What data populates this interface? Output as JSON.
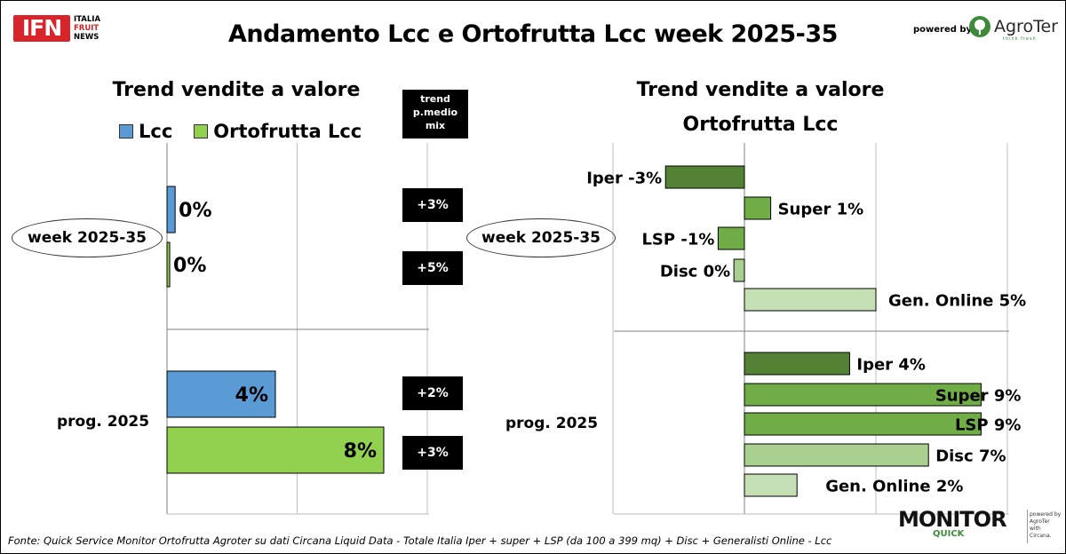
{
  "header": {
    "title": "Andamento Lcc e Ortofrutta Lcc week 2025-35",
    "ifn_logo": {
      "mark": "IFN",
      "words": [
        "ITALIA",
        "FRUIT",
        "NEWS"
      ]
    },
    "powered_by": "powered by",
    "agroter": {
      "name": "AgroTer",
      "tagline": "think fresh"
    }
  },
  "footer": {
    "source": "Fonte: Quick Service Monitor Ortofrutta Agroter su dati Circana Liquid Data - Totale Italia Iper + super + LSP (da 100 a 399 mq) + Disc + Generalisti Online - Lcc",
    "monitor_logo": "MONITOR",
    "monitor_quick": "QUICK",
    "monitor_side": [
      "powered by",
      "AgroTer",
      "with",
      "Circana."
    ]
  },
  "colors": {
    "lcc": "#5b9bd5",
    "ortofrutta_lcc": "#92d050",
    "iper": "#548235",
    "super": "#70ad47",
    "lsp": "#70ad47",
    "disc": "#a9d08e",
    "online": "#c5e0b4",
    "badge_bg": "#000000"
  },
  "chart_data": [
    {
      "type": "bar",
      "orientation": "horizontal",
      "title": "Trend vendite a valore",
      "legend": [
        "Lcc",
        "Ortofrutta Lcc"
      ],
      "legend_position": "top",
      "grid": true,
      "groups": [
        {
          "label": "week 2025-35",
          "bars": [
            {
              "series": "Lcc",
              "value": 0.3,
              "label": "0%"
            },
            {
              "series": "Ortofrutta Lcc",
              "value": 0.1,
              "label": "0%"
            }
          ]
        },
        {
          "label": "prog. 2025",
          "bars": [
            {
              "series": "Lcc",
              "value": 4,
              "label": "4%"
            },
            {
              "series": "Ortofrutta Lcc",
              "value": 8,
              "label": "8%"
            }
          ]
        }
      ],
      "trend_column": {
        "header": [
          "trend",
          "p.medio",
          "mix"
        ],
        "values": [
          "+3%",
          "+5%",
          "+2%",
          "+3%"
        ]
      }
    },
    {
      "type": "bar",
      "orientation": "horizontal",
      "title": [
        "Trend vendite a valore",
        "Ortofrutta Lcc"
      ],
      "grid": true,
      "groups": [
        {
          "label": "week 2025-35",
          "bars": [
            {
              "category": "Iper",
              "value": -3,
              "label": "Iper -3%"
            },
            {
              "category": "Super",
              "value": 1,
              "label": "Super 1%"
            },
            {
              "category": "LSP",
              "value": -1,
              "label": "LSP -1%"
            },
            {
              "category": "Disc",
              "value": -0.4,
              "label": "Disc 0%"
            },
            {
              "category": "Gen. Online",
              "value": 5,
              "label": "Gen. Online 5%"
            }
          ]
        },
        {
          "label": "prog. 2025",
          "bars": [
            {
              "category": "Iper",
              "value": 4,
              "label": "Iper 4%"
            },
            {
              "category": "Super",
              "value": 9,
              "label": "Super 9%"
            },
            {
              "category": "LSP",
              "value": 9,
              "label": "LSP 9%"
            },
            {
              "category": "Disc",
              "value": 7,
              "label": "Disc 7%"
            },
            {
              "category": "Gen. Online",
              "value": 2,
              "label": "Gen. Online 2%"
            }
          ]
        }
      ]
    }
  ]
}
